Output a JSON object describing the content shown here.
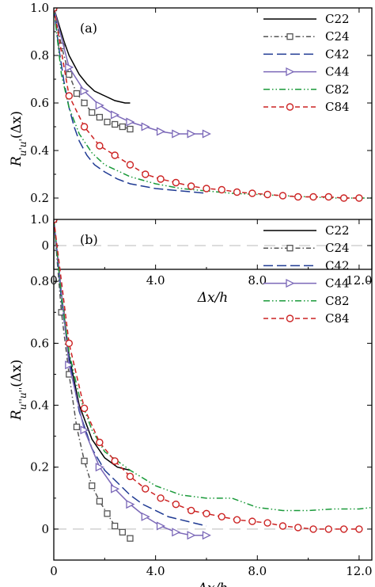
{
  "chart_data": [
    {
      "type": "line",
      "panel_label": "(a)",
      "xlabel": "Δx/h",
      "ylabel": "R_{u'u'}(Δx)",
      "xlim": [
        0,
        12.5
      ],
      "ylim": [
        -0.1,
        1.0
      ],
      "xticks": [
        "0",
        "4.0",
        "8.0",
        "12.0"
      ],
      "yticks": [
        "0",
        "0.2",
        "0.4",
        "0.6",
        "0.8",
        "1.0"
      ],
      "grid": false,
      "legend_position": "top-right",
      "reference_line": {
        "y": 0,
        "style": "dashed",
        "color": "#c8c8c8"
      },
      "series": [
        {
          "name": "C22",
          "color": "#000000",
          "dash": "",
          "marker": "none",
          "x": [
            0,
            0.2,
            0.4,
            0.6,
            0.8,
            1.0,
            1.3,
            1.6,
            2.0,
            2.4,
            2.8,
            3.0
          ],
          "y": [
            1.0,
            0.93,
            0.86,
            0.8,
            0.76,
            0.72,
            0.68,
            0.65,
            0.63,
            0.61,
            0.6,
            0.6
          ]
        },
        {
          "name": "C24",
          "color": "#555555",
          "dash": "6,3,1.5,3",
          "marker": "square",
          "x": [
            0,
            0.3,
            0.6,
            0.9,
            1.2,
            1.5,
            1.8,
            2.1,
            2.4,
            2.7,
            3.0
          ],
          "y": [
            1.0,
            0.84,
            0.72,
            0.64,
            0.6,
            0.56,
            0.54,
            0.52,
            0.51,
            0.5,
            0.49
          ]
        },
        {
          "name": "C42",
          "color": "#1f3a93",
          "dash": "12,5",
          "marker": "none",
          "x": [
            0,
            0.2,
            0.4,
            0.6,
            0.8,
            1.0,
            1.3,
            1.6,
            2.0,
            2.5,
            3.0,
            3.5,
            4.0,
            4.5,
            5.0,
            5.5,
            6.0
          ],
          "y": [
            1.0,
            0.83,
            0.69,
            0.58,
            0.5,
            0.44,
            0.38,
            0.34,
            0.31,
            0.28,
            0.26,
            0.25,
            0.24,
            0.235,
            0.23,
            0.225,
            0.22
          ]
        },
        {
          "name": "C44",
          "color": "#7b68b8",
          "dash": "",
          "marker": "triangle-right",
          "x": [
            0,
            0.6,
            1.2,
            1.8,
            2.4,
            3.0,
            3.6,
            4.2,
            4.8,
            5.4,
            6.0
          ],
          "y": [
            1.0,
            0.75,
            0.65,
            0.59,
            0.55,
            0.52,
            0.5,
            0.48,
            0.47,
            0.47,
            0.47
          ]
        },
        {
          "name": "C82",
          "color": "#1a9a3a",
          "dash": "8,3,1.5,3,1.5,3",
          "marker": "none",
          "x": [
            0,
            0.3,
            0.6,
            1.0,
            1.5,
            2.0,
            3.0,
            4.0,
            5.0,
            6.0,
            7.0,
            8.0,
            9.0,
            10.0,
            11.0,
            12.0,
            12.5
          ],
          "y": [
            1.0,
            0.72,
            0.58,
            0.47,
            0.39,
            0.34,
            0.29,
            0.26,
            0.24,
            0.23,
            0.22,
            0.215,
            0.21,
            0.205,
            0.2,
            0.2,
            0.2
          ]
        },
        {
          "name": "C84",
          "color": "#cc2222",
          "dash": "6,4",
          "marker": "circle",
          "x": [
            0,
            0.6,
            1.2,
            1.8,
            2.4,
            3.0,
            3.6,
            4.2,
            4.8,
            5.4,
            6.0,
            6.6,
            7.2,
            7.8,
            8.4,
            9.0,
            9.6,
            10.2,
            10.8,
            11.4,
            12.0
          ],
          "y": [
            1.0,
            0.63,
            0.5,
            0.42,
            0.38,
            0.34,
            0.3,
            0.28,
            0.265,
            0.25,
            0.24,
            0.235,
            0.225,
            0.22,
            0.215,
            0.21,
            0.205,
            0.205,
            0.205,
            0.2,
            0.2
          ]
        }
      ]
    },
    {
      "type": "line",
      "panel_label": "(b)",
      "xlabel": "Δx/h",
      "ylabel": "R_{u''u''}(Δx)",
      "xlim": [
        0,
        12.5
      ],
      "ylim": [
        -0.1,
        1.0
      ],
      "xticks": [
        "0",
        "4.0",
        "8.0",
        "12.0"
      ],
      "yticks": [
        "0",
        "0.2",
        "0.4",
        "0.6",
        "0.8",
        "1.0"
      ],
      "grid": false,
      "legend_position": "top-right",
      "reference_line": {
        "y": 0,
        "style": "dashed",
        "color": "#c8c8c8"
      },
      "series": [
        {
          "name": "C22",
          "color": "#000000",
          "dash": "",
          "marker": "none",
          "x": [
            0,
            0.3,
            0.6,
            1.0,
            1.5,
            2.0,
            2.5,
            3.0
          ],
          "y": [
            1.0,
            0.76,
            0.56,
            0.4,
            0.29,
            0.23,
            0.2,
            0.19
          ]
        },
        {
          "name": "C24",
          "color": "#555555",
          "dash": "6,3,1.5,3",
          "marker": "square",
          "x": [
            0,
            0.3,
            0.6,
            0.9,
            1.2,
            1.5,
            1.8,
            2.1,
            2.4,
            2.7,
            3.0
          ],
          "y": [
            1.0,
            0.7,
            0.5,
            0.33,
            0.22,
            0.14,
            0.09,
            0.05,
            0.01,
            -0.01,
            -0.03
          ]
        },
        {
          "name": "C42",
          "color": "#1f3a93",
          "dash": "12,5",
          "marker": "none",
          "x": [
            0,
            0.3,
            0.6,
            1.0,
            1.5,
            2.0,
            2.5,
            3.0,
            3.5,
            4.0,
            4.5,
            5.0,
            5.5,
            6.0
          ],
          "y": [
            1.0,
            0.74,
            0.55,
            0.38,
            0.26,
            0.19,
            0.15,
            0.11,
            0.08,
            0.06,
            0.04,
            0.03,
            0.02,
            0.01
          ]
        },
        {
          "name": "C44",
          "color": "#7b68b8",
          "dash": "",
          "marker": "triangle-right",
          "x": [
            0,
            0.6,
            1.2,
            1.8,
            2.4,
            3.0,
            3.6,
            4.2,
            4.8,
            5.4,
            6.0
          ],
          "y": [
            1.0,
            0.53,
            0.32,
            0.2,
            0.13,
            0.08,
            0.04,
            0.01,
            -0.01,
            -0.02,
            -0.02
          ]
        },
        {
          "name": "C82",
          "color": "#1a9a3a",
          "dash": "8,3,1.5,3,1.5,3",
          "marker": "none",
          "x": [
            0,
            0.3,
            0.6,
            1.0,
            1.5,
            2.0,
            3.0,
            4.0,
            5.0,
            6.0,
            7.0,
            8.0,
            9.0,
            10.0,
            11.0,
            12.0,
            12.5
          ],
          "y": [
            1.0,
            0.75,
            0.57,
            0.43,
            0.32,
            0.25,
            0.19,
            0.14,
            0.11,
            0.1,
            0.1,
            0.07,
            0.06,
            0.06,
            0.065,
            0.065,
            0.07
          ]
        },
        {
          "name": "C84",
          "color": "#cc2222",
          "dash": "6,4",
          "marker": "circle",
          "x": [
            0,
            0.6,
            1.2,
            1.8,
            2.4,
            3.0,
            3.6,
            4.2,
            4.8,
            5.4,
            6.0,
            6.6,
            7.2,
            7.8,
            8.4,
            9.0,
            9.6,
            10.2,
            10.8,
            11.4,
            12.0
          ],
          "y": [
            1.0,
            0.6,
            0.39,
            0.28,
            0.22,
            0.17,
            0.13,
            0.1,
            0.08,
            0.06,
            0.05,
            0.04,
            0.03,
            0.025,
            0.02,
            0.01,
            0.005,
            0.0,
            0.0,
            0.0,
            0.0
          ]
        }
      ]
    }
  ]
}
